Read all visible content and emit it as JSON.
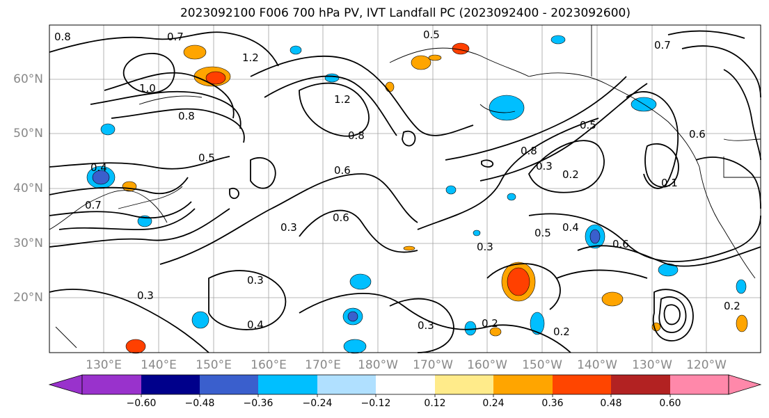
{
  "title": "2023092100 F006 700 hPa PV, IVT Landfall PC (2023092400 - 2023092600)",
  "map": {
    "lat_labels": [
      "60°N",
      "50°N",
      "40°N",
      "30°N",
      "20°N"
    ],
    "lon_labels": [
      "130°E",
      "140°E",
      "150°E",
      "160°E",
      "170°E",
      "180°W",
      "170°W",
      "160°W",
      "150°W",
      "140°W",
      "130°W",
      "120°W"
    ],
    "contour_labels": [
      "0.8",
      "0.7",
      "1.2",
      "1.0",
      "0.8",
      "0.5",
      "0.4",
      "0.7",
      "0.5",
      "0.3",
      "0.6",
      "0.3",
      "0.4",
      "0.3",
      "0.2",
      "0.3",
      "0.2",
      "0.6",
      "0.8",
      "0.3",
      "0.2",
      "0.5",
      "0.6",
      "0.5",
      "0.4",
      "0.7",
      "0.6",
      "0.1",
      "0.2",
      "0.3",
      "1.2",
      "0.8"
    ],
    "colors": {
      "neg_strong": "#1f3fb5",
      "neg_mid": "#00bfff",
      "neg_light": "#b3e0ff",
      "pos_light": "#ffe680",
      "pos_mid": "#ffa500",
      "pos_strong": "#ff4000",
      "grid": "#a0a0a0"
    }
  },
  "colorbar": {
    "tick_labels": [
      "−0.60",
      "−0.48",
      "−0.36",
      "−0.24",
      "−0.12",
      "0.12",
      "0.24",
      "0.36",
      "0.48",
      "0.60"
    ],
    "colors": [
      "#9932cc",
      "#00008b",
      "#3a5fcd",
      "#00bfff",
      "#b0e0ff",
      "#ffffff",
      "#ffeb8a",
      "#ffa500",
      "#ff4500",
      "#b22222",
      "#ff88aa"
    ]
  }
}
